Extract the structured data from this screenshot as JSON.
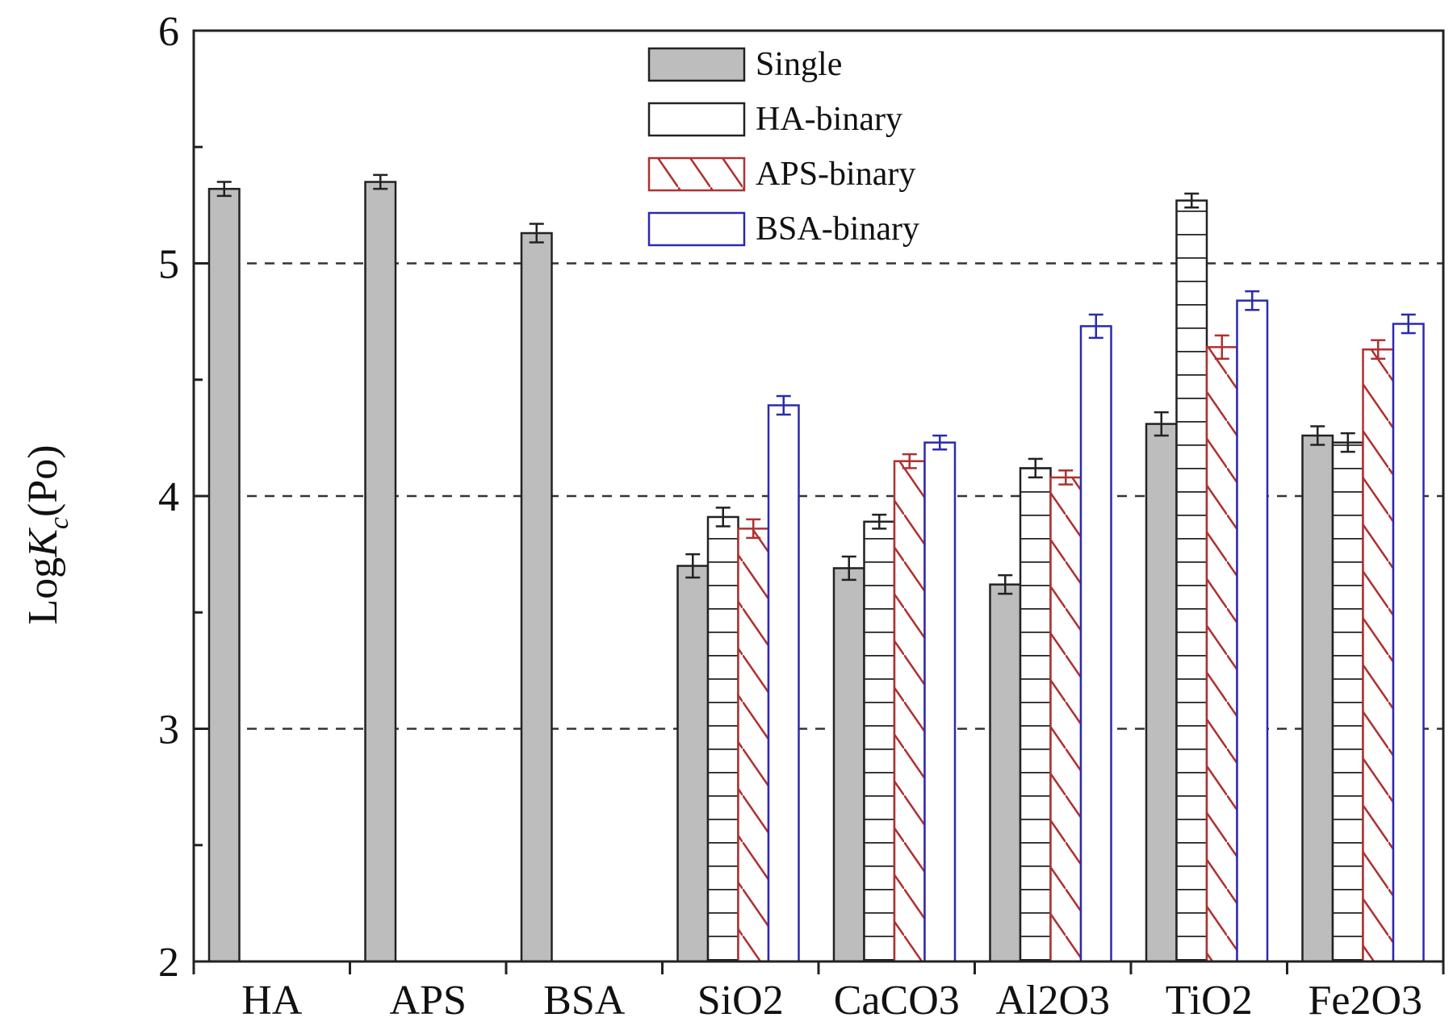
{
  "chart_data": {
    "type": "bar",
    "ylabel": {
      "prefix": "Log",
      "italic": "K",
      "subscript": "c",
      "suffix": "(Po)"
    },
    "ylim": [
      2,
      6
    ],
    "yticks": [
      2,
      3,
      4,
      5,
      6
    ],
    "grid": {
      "dashed_y": [
        3,
        4,
        5
      ]
    },
    "legend_position": "top-center",
    "categories": [
      "HA",
      "APS",
      "BSA",
      "SiO2",
      "CaCO3",
      "Al2O3",
      "TiO2",
      "Fe2O3"
    ],
    "series": [
      {
        "name": "Single",
        "fill": "#bdbdbd",
        "stroke": "#222222",
        "pattern": "solid",
        "values": [
          5.32,
          5.35,
          5.13,
          3.7,
          3.69,
          3.62,
          4.31,
          4.26
        ],
        "errors": [
          0.03,
          0.03,
          0.04,
          0.05,
          0.05,
          0.04,
          0.05,
          0.04
        ]
      },
      {
        "name": "HA-binary",
        "fill": "#ffffff",
        "stroke": "#222222",
        "pattern": "horizontal",
        "values": [
          null,
          null,
          null,
          3.91,
          3.89,
          4.12,
          5.27,
          4.23
        ],
        "errors": [
          null,
          null,
          null,
          0.04,
          0.03,
          0.04,
          0.03,
          0.04
        ]
      },
      {
        "name": "APS-binary",
        "fill": "#ffffff",
        "stroke": "#b03030",
        "pattern": "diagonal",
        "values": [
          null,
          null,
          null,
          3.86,
          4.15,
          4.08,
          4.64,
          4.63
        ],
        "errors": [
          null,
          null,
          null,
          0.04,
          0.03,
          0.03,
          0.05,
          0.04
        ]
      },
      {
        "name": "BSA-binary",
        "fill": "#ffffff",
        "stroke": "#2a2ab0",
        "pattern": "solid",
        "values": [
          null,
          null,
          null,
          4.39,
          4.23,
          4.73,
          4.84,
          4.74
        ],
        "errors": [
          null,
          null,
          null,
          0.04,
          0.03,
          0.05,
          0.04,
          0.04
        ]
      }
    ]
  }
}
